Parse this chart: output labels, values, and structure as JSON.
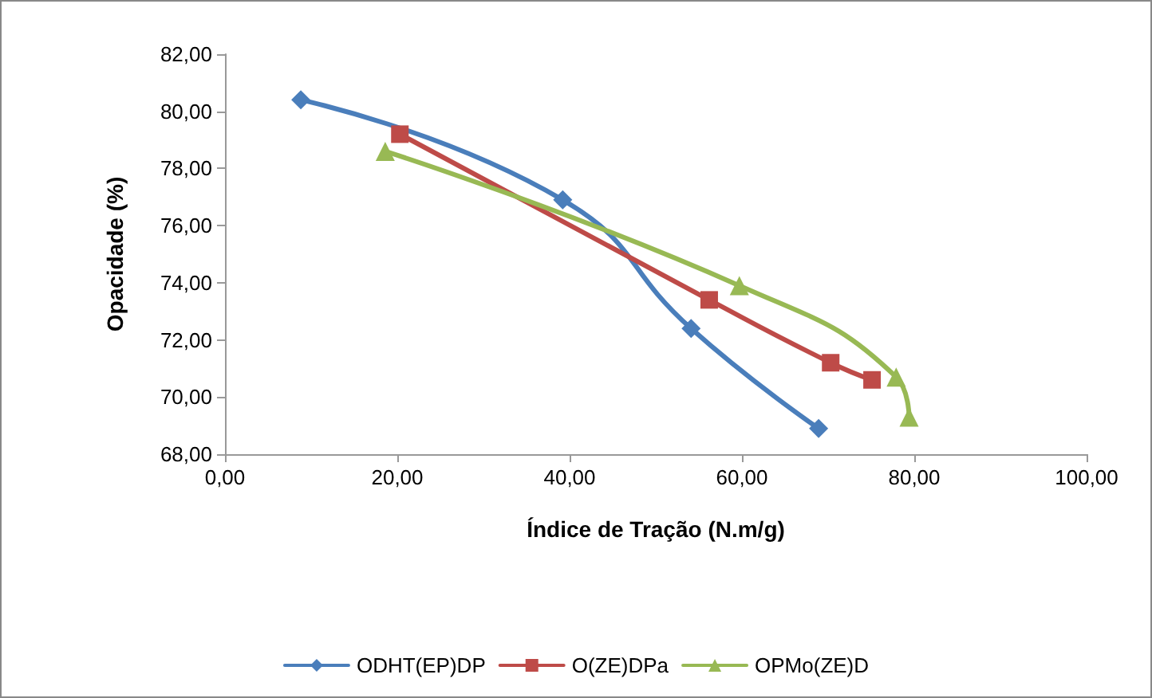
{
  "chart_data": {
    "type": "line",
    "xlabel": "Índice de Tração (N.m/g)",
    "ylabel": "Opacidade (%)",
    "xlim": [
      0,
      100
    ],
    "xticks": [
      {
        "value": 0,
        "label": "0,00"
      },
      {
        "value": 20,
        "label": "20,00"
      },
      {
        "value": 40,
        "label": "40,00"
      },
      {
        "value": 60,
        "label": "60,00"
      },
      {
        "value": 80,
        "label": "80,00"
      },
      {
        "value": 100,
        "label": "100,00"
      }
    ],
    "ylim": [
      68,
      82
    ],
    "yticks": [
      {
        "value": 68,
        "label": "68,00"
      },
      {
        "value": 70,
        "label": "70,00"
      },
      {
        "value": 72,
        "label": "72,00"
      },
      {
        "value": 74,
        "label": "74,00"
      },
      {
        "value": 76,
        "label": "76,00"
      },
      {
        "value": 78,
        "label": "78,00"
      },
      {
        "value": 80,
        "label": "80,00"
      },
      {
        "value": 82,
        "label": "82,00"
      }
    ],
    "grid": false,
    "legend": "bottom",
    "line_style": "solid",
    "series": [
      {
        "name": "ODHT(EP)DP",
        "color": "#4a7ebb",
        "marker": "diamond",
        "x": [
          8.8,
          39.2,
          54.1,
          68.9
        ],
        "values": [
          80.4,
          76.9,
          72.4,
          68.9
        ]
      },
      {
        "name": "O(ZE)DPa",
        "color": "#be4b48",
        "marker": "square",
        "x": [
          20.3,
          56.2,
          70.3,
          75.1
        ],
        "values": [
          79.2,
          73.4,
          71.2,
          70.6
        ]
      },
      {
        "name": "OPMo(ZE)D",
        "color": "#98b954",
        "marker": "triangle",
        "x": [
          18.6,
          59.7,
          77.9,
          79.4
        ],
        "values": [
          78.6,
          73.9,
          70.7,
          69.3
        ]
      }
    ]
  }
}
